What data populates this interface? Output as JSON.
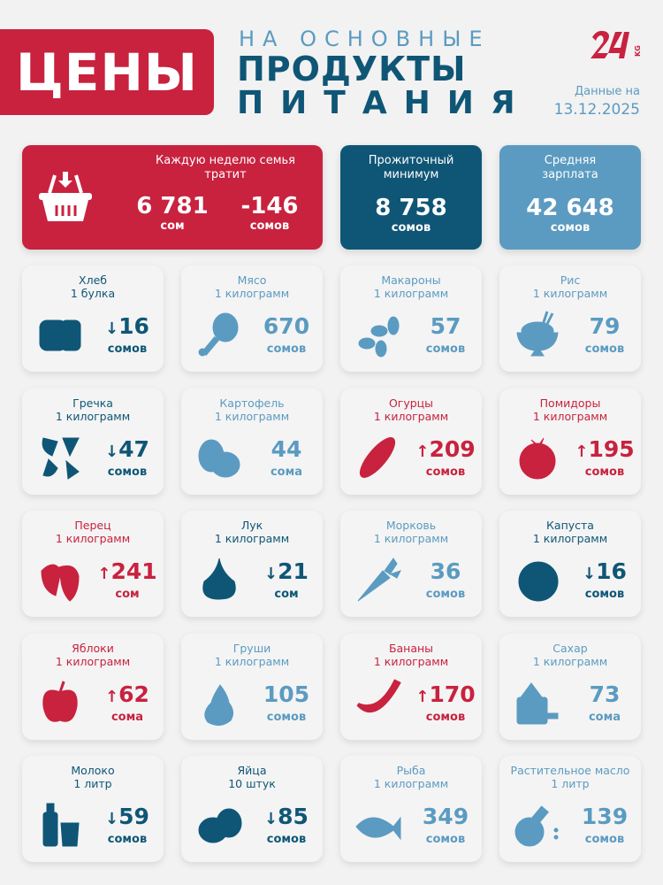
{
  "header": {
    "badge": "ЦЕНЫ",
    "line1": "НА ОСНОВНЫЕ",
    "line2": "ПРОДУКТЫ",
    "line3": "ПИТАНИЯ",
    "logo": "24 KG",
    "date_label": "Данные на",
    "date": "13.12.2025"
  },
  "colors": {
    "red": "#c8223f",
    "dark_blue": "#0f5676",
    "light_blue": "#5b9bc1",
    "background": "#f2f2f2"
  },
  "summary": {
    "weekly": {
      "label": "Каждую неделю семья тратит",
      "value": "6 781",
      "unit": "сом",
      "change": "-146",
      "change_unit": "сомов",
      "icon": "basket-icon"
    },
    "minimum": {
      "label": "Прожиточный минимум",
      "value": "8 758",
      "unit": "сомов"
    },
    "salary": {
      "label": "Средняя зарплата",
      "value": "42 648",
      "unit": "сомов"
    }
  },
  "products": [
    {
      "name": "Хлеб",
      "qty": "1 булка",
      "value": "16",
      "unit": "сомов",
      "trend": "down",
      "icon": "bread-icon"
    },
    {
      "name": "Мясо",
      "qty": "1 килограмм",
      "value": "670",
      "unit": "сомов",
      "trend": "same",
      "icon": "meat-icon"
    },
    {
      "name": "Макароны",
      "qty": "1 килограмм",
      "value": "57",
      "unit": "сомов",
      "trend": "same",
      "icon": "pasta-icon"
    },
    {
      "name": "Рис",
      "qty": "1 килограмм",
      "value": "79",
      "unit": "сомов",
      "trend": "same",
      "icon": "rice-bowl-icon"
    },
    {
      "name": "Гречка",
      "qty": "1 килограмм",
      "value": "47",
      "unit": "сомов",
      "trend": "down",
      "icon": "buckwheat-icon"
    },
    {
      "name": "Картофель",
      "qty": "1 килограмм",
      "value": "44",
      "unit": "сома",
      "trend": "same",
      "icon": "potato-icon"
    },
    {
      "name": "Огурцы",
      "qty": "1 килограмм",
      "value": "209",
      "unit": "сомов",
      "trend": "up",
      "icon": "cucumber-icon"
    },
    {
      "name": "Помидоры",
      "qty": "1 килограмм",
      "value": "195",
      "unit": "сомов",
      "trend": "up",
      "icon": "tomato-icon"
    },
    {
      "name": "Перец",
      "qty": "1 килограмм",
      "value": "241",
      "unit": "сом",
      "trend": "up",
      "icon": "pepper-icon"
    },
    {
      "name": "Лук",
      "qty": "1 килограмм",
      "value": "21",
      "unit": "сом",
      "trend": "down",
      "icon": "onion-icon"
    },
    {
      "name": "Морковь",
      "qty": "1 килограмм",
      "value": "36",
      "unit": "сомов",
      "trend": "same",
      "icon": "carrot-icon"
    },
    {
      "name": "Капуста",
      "qty": "1 килограмм",
      "value": "16",
      "unit": "сомов",
      "trend": "down",
      "icon": "cabbage-icon"
    },
    {
      "name": "Яблоки",
      "qty": "1 килограмм",
      "value": "62",
      "unit": "сома",
      "trend": "up",
      "icon": "apple-icon"
    },
    {
      "name": "Груши",
      "qty": "1 килограмм",
      "value": "105",
      "unit": "сомов",
      "trend": "same",
      "icon": "pear-icon"
    },
    {
      "name": "Бананы",
      "qty": "1 килограмм",
      "value": "170",
      "unit": "сомов",
      "trend": "up",
      "icon": "banana-icon"
    },
    {
      "name": "Сахар",
      "qty": "1 килограмм",
      "value": "73",
      "unit": "сома",
      "trend": "same",
      "icon": "sugar-icon"
    },
    {
      "name": "Молоко",
      "qty": "1 литр",
      "value": "59",
      "unit": "сомов",
      "trend": "down",
      "icon": "milk-icon"
    },
    {
      "name": "Яйца",
      "qty": "10 штук",
      "value": "85",
      "unit": "сомов",
      "trend": "down",
      "icon": "eggs-icon"
    },
    {
      "name": "Рыба",
      "qty": "1 килограмм",
      "value": "349",
      "unit": "сомов",
      "trend": "same",
      "icon": "fish-icon"
    },
    {
      "name": "Растительное масло",
      "qty": "1 литр",
      "value": "139",
      "unit": "сомов",
      "trend": "same",
      "icon": "oil-icon"
    }
  ]
}
